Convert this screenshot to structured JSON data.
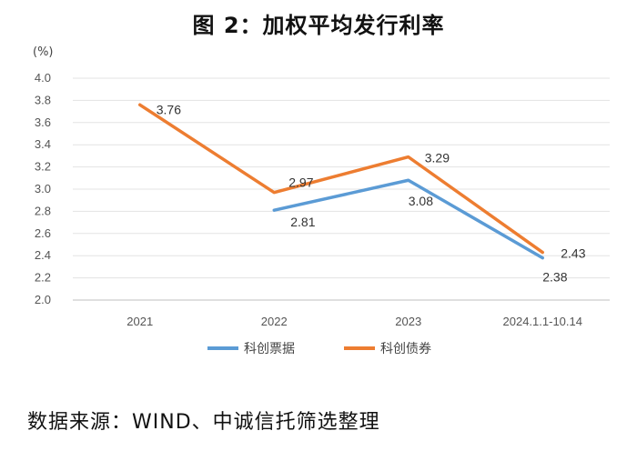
{
  "chart_data": {
    "type": "line",
    "title": "图 2：加权平均发行利率",
    "unit_label": "(%)",
    "categories": [
      "2021",
      "2022",
      "2023",
      "2024.1.1-10.14"
    ],
    "ylim": [
      2.0,
      4.0
    ],
    "yticks": [
      "2.0",
      "2.2",
      "2.4",
      "2.6",
      "2.8",
      "3.0",
      "3.2",
      "3.4",
      "3.6",
      "3.8",
      "4.0"
    ],
    "grid": true,
    "legend_position": "bottom",
    "series": [
      {
        "name": "科创票据",
        "color": "#5B9BD5",
        "values": [
          null,
          2.81,
          3.08,
          2.38
        ],
        "labels": [
          "",
          "2.81",
          "3.08",
          "2.38"
        ]
      },
      {
        "name": "科创债券",
        "color": "#ED7D31",
        "values": [
          3.76,
          2.97,
          3.29,
          2.43
        ],
        "labels": [
          "3.76",
          "2.97",
          "3.29",
          "2.43"
        ]
      }
    ]
  },
  "source": "数据来源：WIND、中诚信托筛选整理"
}
